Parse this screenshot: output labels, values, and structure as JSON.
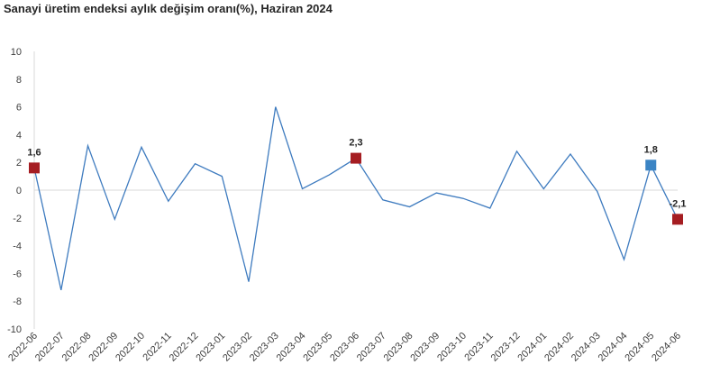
{
  "chart_data": {
    "type": "line",
    "title": "Sanayi üretim endeksi aylık değişim oranı(%), Haziran 2024",
    "xlabel": "",
    "ylabel": "",
    "ylim": [
      -10,
      10
    ],
    "y_ticks": [
      10,
      8,
      6,
      4,
      2,
      0,
      -2,
      -4,
      -6,
      -8,
      -10
    ],
    "grid": false,
    "legend": "none",
    "categories": [
      "2022-06",
      "2022-07",
      "2022-08",
      "2022-09",
      "2022-10",
      "2022-11",
      "2022-12",
      "2023-01",
      "2023-02",
      "2023-03",
      "2023-04",
      "2023-05",
      "2023-06",
      "2023-07",
      "2023-08",
      "2023-09",
      "2023-10",
      "2023-11",
      "2023-12",
      "2024-01",
      "2024-02",
      "2024-03",
      "2024-04",
      "2024-05",
      "2024-06"
    ],
    "series": [
      {
        "values": [
          1.6,
          -7.2,
          3.2,
          -2.1,
          3.1,
          -0.8,
          1.9,
          1.0,
          -6.6,
          6.0,
          0.1,
          1.1,
          2.3,
          -0.7,
          -1.2,
          -0.2,
          -0.6,
          -1.3,
          2.8,
          0.1,
          2.6,
          -0.1,
          -5.0,
          1.8,
          -2.1
        ],
        "color": "#3e7bbf"
      }
    ],
    "highlights": [
      {
        "index": 0,
        "label": "1,6",
        "color": "#a51d22"
      },
      {
        "index": 12,
        "label": "2,3",
        "color": "#a51d22"
      },
      {
        "index": 23,
        "label": "1,8",
        "color": "#3b84c4"
      },
      {
        "index": 24,
        "label": "-2,1",
        "color": "#a51d22"
      }
    ]
  }
}
